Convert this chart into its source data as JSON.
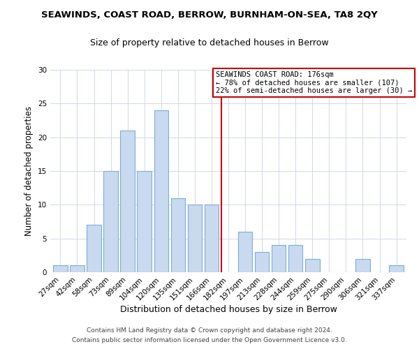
{
  "title": "SEAWINDS, COAST ROAD, BERROW, BURNHAM-ON-SEA, TA8 2QY",
  "subtitle": "Size of property relative to detached houses in Berrow",
  "xlabel": "Distribution of detached houses by size in Berrow",
  "ylabel": "Number of detached properties",
  "bar_labels": [
    "27sqm",
    "42sqm",
    "58sqm",
    "73sqm",
    "89sqm",
    "104sqm",
    "120sqm",
    "135sqm",
    "151sqm",
    "166sqm",
    "182sqm",
    "197sqm",
    "213sqm",
    "228sqm",
    "244sqm",
    "259sqm",
    "275sqm",
    "290sqm",
    "306sqm",
    "321sqm",
    "337sqm"
  ],
  "bar_values": [
    1,
    1,
    7,
    15,
    21,
    15,
    24,
    11,
    10,
    10,
    0,
    6,
    3,
    4,
    4,
    2,
    0,
    0,
    2,
    0,
    1
  ],
  "bar_color": "#c9d9f0",
  "bar_edge_color": "#7bafd4",
  "vline_x": 10.0,
  "vline_color": "#cc0000",
  "ylim": [
    0,
    30
  ],
  "annotation_title": "SEAWINDS COAST ROAD: 176sqm",
  "annotation_line1": "← 78% of detached houses are smaller (107)",
  "annotation_line2": "22% of semi-detached houses are larger (30) →",
  "annotation_box_color": "#ffffff",
  "annotation_border_color": "#cc0000",
  "footer_line1": "Contains HM Land Registry data © Crown copyright and database right 2024.",
  "footer_line2": "Contains public sector information licensed under the Open Government Licence v3.0.",
  "background_color": "#ffffff",
  "grid_color": "#d0d8e8"
}
